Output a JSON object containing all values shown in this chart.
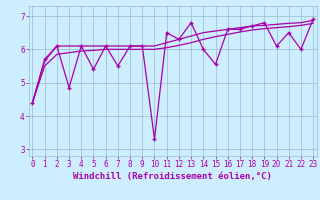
{
  "xlabel": "Windchill (Refroidissement éolien,°C)",
  "bg_color": "#cceeff",
  "line_color": "#aa00aa",
  "grid_color": "#99bbcc",
  "x_data": [
    0,
    1,
    2,
    3,
    4,
    5,
    6,
    7,
    8,
    9,
    10,
    11,
    12,
    13,
    14,
    15,
    16,
    17,
    18,
    19,
    20,
    21,
    22,
    23
  ],
  "y_jagged": [
    4.4,
    5.7,
    6.1,
    4.85,
    6.1,
    5.4,
    6.1,
    5.5,
    6.1,
    6.1,
    3.3,
    6.5,
    6.3,
    6.8,
    6.0,
    5.55,
    6.6,
    6.6,
    6.7,
    6.8,
    6.1,
    6.5,
    6.0,
    6.9
  ],
  "y_smooth1": [
    4.4,
    5.65,
    6.1,
    6.1,
    6.1,
    6.1,
    6.1,
    6.1,
    6.1,
    6.1,
    6.1,
    6.2,
    6.3,
    6.4,
    6.5,
    6.55,
    6.6,
    6.65,
    6.7,
    6.72,
    6.75,
    6.78,
    6.8,
    6.87
  ],
  "y_smooth2": [
    4.4,
    5.5,
    5.85,
    5.9,
    5.95,
    5.97,
    6.0,
    6.0,
    6.0,
    6.0,
    6.0,
    6.05,
    6.12,
    6.2,
    6.3,
    6.38,
    6.45,
    6.52,
    6.58,
    6.62,
    6.65,
    6.68,
    6.72,
    6.78
  ],
  "ylim": [
    2.8,
    7.3
  ],
  "yticks": [
    3,
    4,
    5,
    6,
    7
  ],
  "xticks": [
    0,
    1,
    2,
    3,
    4,
    5,
    6,
    7,
    8,
    9,
    10,
    11,
    12,
    13,
    14,
    15,
    16,
    17,
    18,
    19,
    20,
    21,
    22,
    23
  ],
  "tick_fontsize": 5.5,
  "xlabel_fontsize": 6.5
}
